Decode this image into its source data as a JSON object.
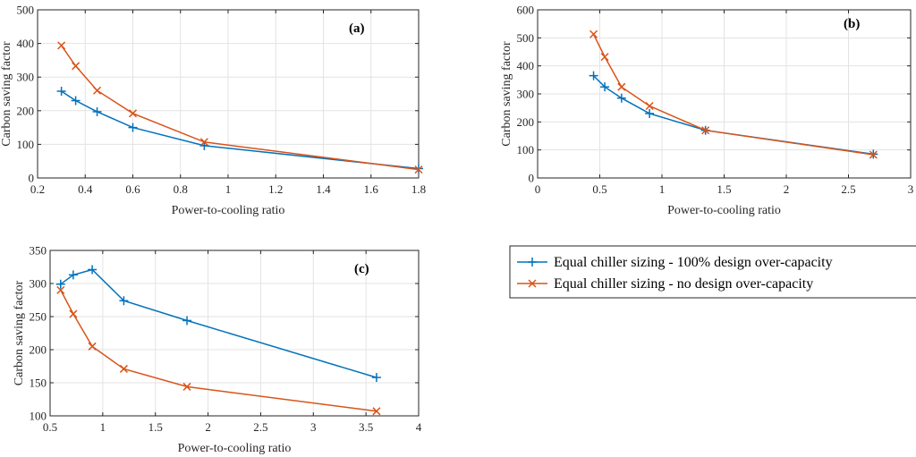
{
  "colors": {
    "s1": "#0072BD",
    "s2": "#D95319"
  },
  "legend": {
    "entries": [
      {
        "label": "Equal chiller sizing - 100% design over-capacity",
        "marker": "plus"
      },
      {
        "label": "Equal chiller sizing - no design over-capacity",
        "marker": "x"
      }
    ]
  },
  "chart_data": [
    {
      "type": "line",
      "panel_label": "(a)",
      "xlabel": "Power-to-cooling ratio",
      "ylabel": "Carbon saving factor",
      "xlim": [
        0.2,
        1.8
      ],
      "ylim": [
        0,
        500
      ],
      "xticks": [
        0.2,
        0.4,
        0.6,
        0.8,
        1,
        1.2,
        1.4,
        1.6,
        1.8
      ],
      "xtick_labels": [
        "0.2",
        "0.4",
        "0.6",
        "0.8",
        "1",
        "1.2",
        "1.4",
        "1.6",
        "1.8"
      ],
      "yticks": [
        0,
        100,
        200,
        300,
        400,
        500
      ],
      "ytick_labels": [
        "0",
        "100",
        "200",
        "300",
        "400",
        "500"
      ],
      "grid": true,
      "series": [
        {
          "name": "Equal chiller sizing - 100% design over-capacity",
          "marker": "plus",
          "x": [
            0.3,
            0.36,
            0.45,
            0.6,
            0.9,
            1.8
          ],
          "y": [
            258,
            230,
            197,
            150,
            96,
            28
          ]
        },
        {
          "name": "Equal chiller sizing - no design over-capacity",
          "marker": "x",
          "x": [
            0.3,
            0.36,
            0.45,
            0.6,
            0.9,
            1.8
          ],
          "y": [
            394,
            333,
            260,
            192,
            107,
            25
          ]
        }
      ]
    },
    {
      "type": "line",
      "panel_label": "(b)",
      "xlabel": "Power-to-cooling ratio",
      "ylabel": "Carbon saving factor",
      "xlim": [
        0,
        3
      ],
      "ylim": [
        0,
        600
      ],
      "xticks": [
        0,
        0.5,
        1,
        1.5,
        2,
        2.5,
        3
      ],
      "xtick_labels": [
        "0",
        "0.5",
        "1",
        "1.5",
        "2",
        "2.5",
        "3"
      ],
      "yticks": [
        0,
        100,
        200,
        300,
        400,
        500,
        600
      ],
      "ytick_labels": [
        "0",
        "100",
        "200",
        "300",
        "400",
        "500",
        "600"
      ],
      "grid": true,
      "series": [
        {
          "name": "Equal chiller sizing - 100% design over-capacity",
          "marker": "plus",
          "x": [
            0.45,
            0.54,
            0.675,
            0.9,
            1.35,
            2.7
          ],
          "y": [
            365,
            325,
            285,
            230,
            170,
            85
          ]
        },
        {
          "name": "Equal chiller sizing - no design over-capacity",
          "marker": "x",
          "x": [
            0.45,
            0.54,
            0.675,
            0.9,
            1.35,
            2.7
          ],
          "y": [
            513,
            432,
            325,
            257,
            170,
            83
          ]
        }
      ]
    },
    {
      "type": "line",
      "panel_label": "(c)",
      "xlabel": "Power-to-cooling ratio",
      "ylabel": "Carbon saving factor",
      "xlim": [
        0.5,
        4
      ],
      "ylim": [
        100,
        350
      ],
      "xticks": [
        0.5,
        1,
        1.5,
        2,
        2.5,
        3,
        3.5,
        4
      ],
      "xtick_labels": [
        "0.5",
        "1",
        "1.5",
        "2",
        "2.5",
        "3",
        "3.5",
        "4"
      ],
      "yticks": [
        100,
        150,
        200,
        250,
        300,
        350
      ],
      "ytick_labels": [
        "100",
        "150",
        "200",
        "250",
        "300",
        "350"
      ],
      "grid": true,
      "series": [
        {
          "name": "Equal chiller sizing - 100% design over-capacity",
          "marker": "plus",
          "x": [
            0.6,
            0.72,
            0.9,
            1.2,
            1.8,
            3.6
          ],
          "y": [
            299,
            313,
            321,
            274,
            244,
            158
          ]
        },
        {
          "name": "Equal chiller sizing - no design over-capacity",
          "marker": "x",
          "x": [
            0.6,
            0.72,
            0.9,
            1.2,
            1.8,
            3.6
          ],
          "y": [
            290,
            254,
            205,
            171,
            144,
            107
          ]
        }
      ]
    }
  ]
}
